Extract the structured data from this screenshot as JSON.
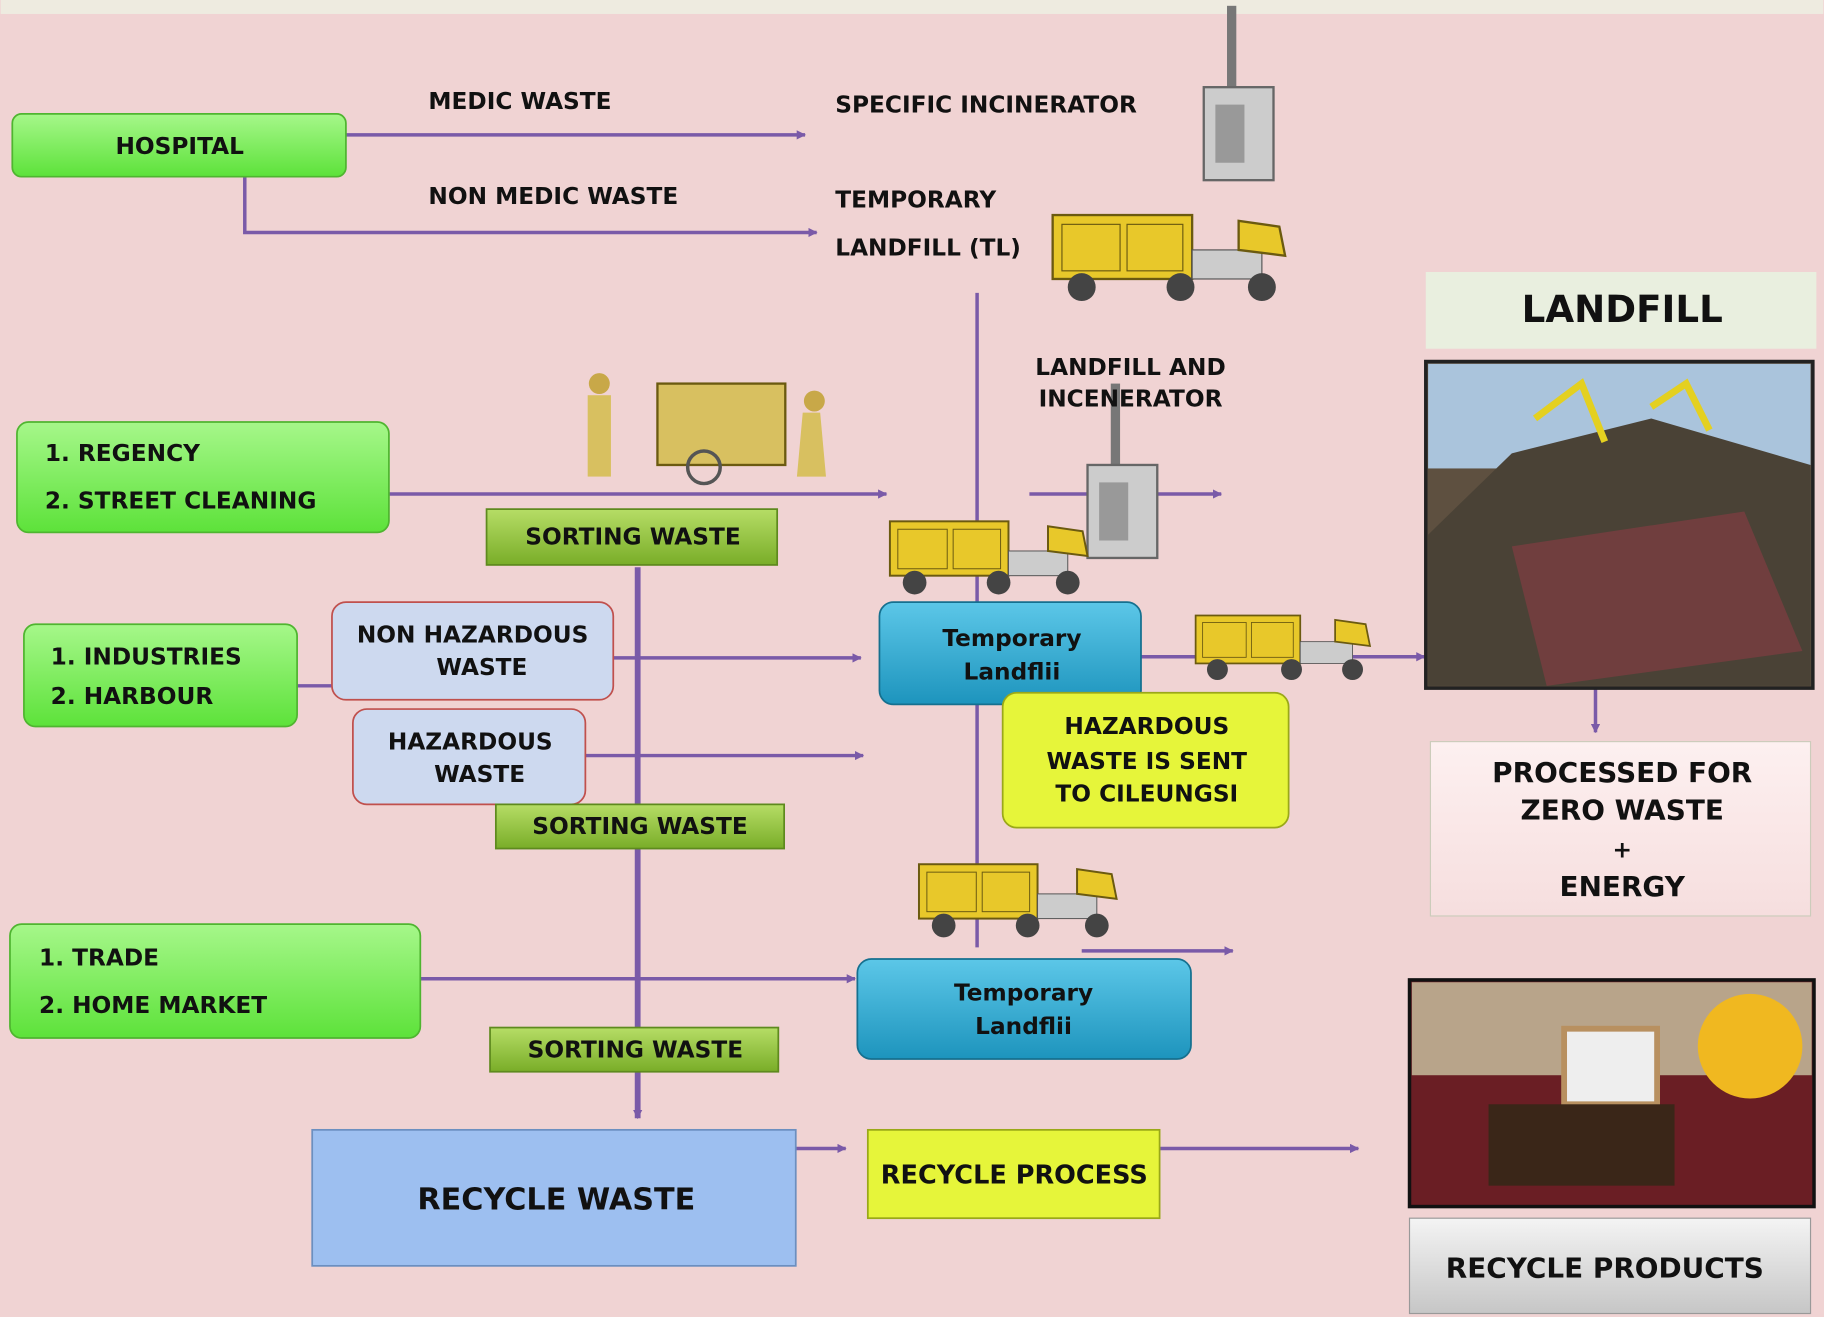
{
  "nodes": {
    "hospital": "HOSPITAL",
    "medic_waste": "MEDIC WASTE",
    "non_medic_waste": "NON MEDIC WASTE",
    "specific_incinerator": "SPECIFIC INCINERATOR",
    "temporary_landfill_tl": [
      "TEMPORARY",
      "LANDFILL (TL)"
    ],
    "landfill_and_incinerator": [
      "LANDFILL AND",
      "INCENERATOR"
    ],
    "regency": [
      "1.  REGENCY",
      "2.  STREET CLEANING"
    ],
    "sorting_waste_1": "SORTING WASTE",
    "industries": [
      "1.  INDUSTRIES",
      "2.  HARBOUR"
    ],
    "non_hazardous_waste": [
      "NON HAZARDOUS",
      "WASTE"
    ],
    "hazardous_waste": [
      "HAZARDOUS",
      "WASTE"
    ],
    "sorting_waste_2": "SORTING WASTE",
    "temporary_landfill_1": [
      "Temporary",
      "Landflii"
    ],
    "hazardous_sent": [
      "HAZARDOUS",
      "WASTE  IS SENT",
      "TO  CILEUNGSI"
    ],
    "trade": [
      "1.  TRADE",
      "2.  HOME MARKET"
    ],
    "temporary_landfill_2": [
      "Temporary",
      "Landflii"
    ],
    "sorting_waste_3": "SORTING WASTE",
    "recycle_waste": "RECYCLE WASTE",
    "recycle_process": "RECYCLE PROCESS",
    "landfill_title": "LANDFILL",
    "processed": [
      "PROCESSED FOR",
      "ZERO WASTE",
      "+",
      "ENERGY"
    ],
    "recycle_products": "RECYCLE PRODUCTS"
  }
}
